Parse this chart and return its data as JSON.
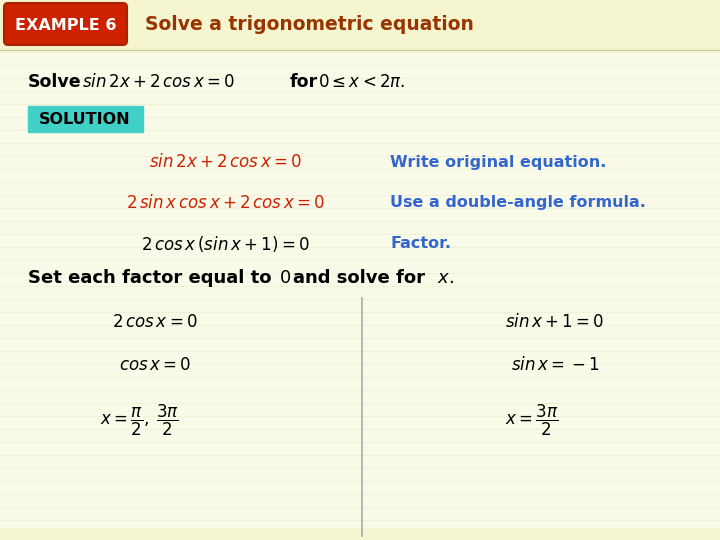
{
  "bg_color": "#fafae8",
  "header_bg": "#f5f5d0",
  "example_box_red": "#cc2200",
  "example_text": "EXAMPLE 6",
  "header_title": "Solve a trigonometric equation",
  "header_title_color": "#993300",
  "solution_box_color": "#40d0c8",
  "solution_text": "SOLUTION",
  "divider_line_color": "#aaaaaa",
  "black": "#000000",
  "red": "#cc2200",
  "blue": "#3366cc",
  "white": "#ffffff",
  "footer_bg": "#f5f5d0"
}
